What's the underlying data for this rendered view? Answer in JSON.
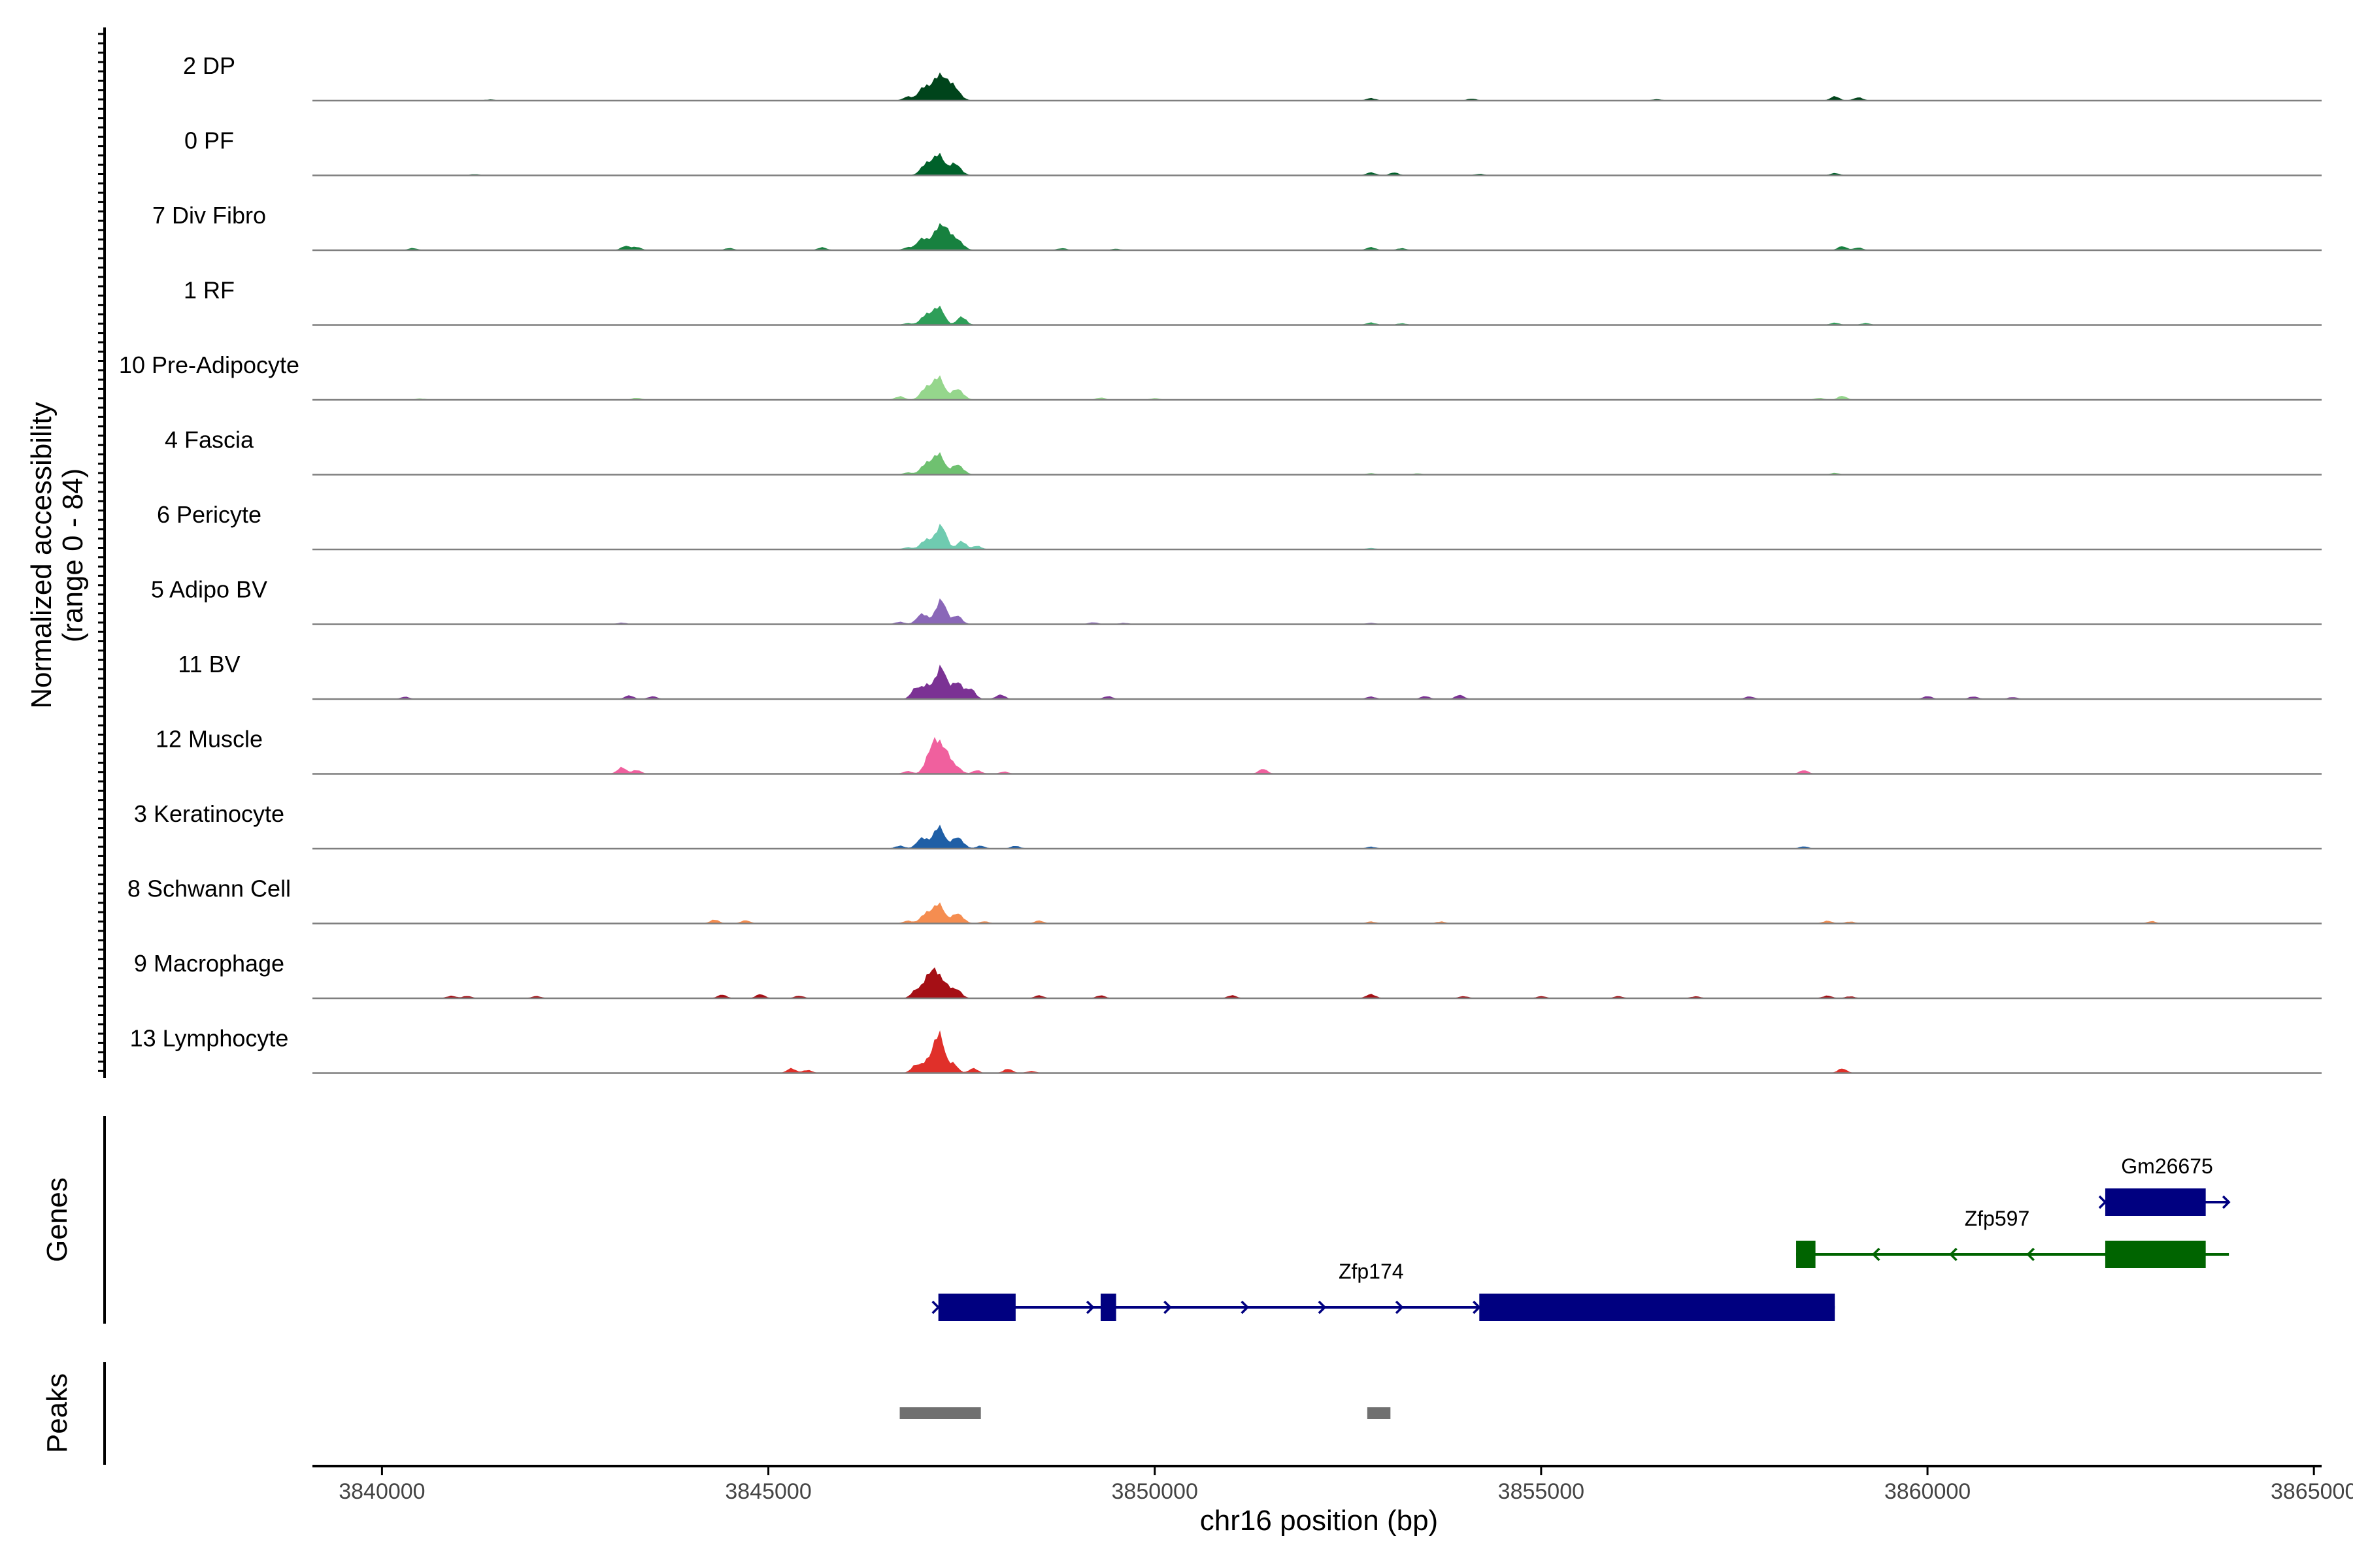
{
  "chart_data": {
    "type": "area",
    "description_type": "genome-coverage-tracks",
    "y_axis_title": [
      "Normalized accessibility",
      "(range 0 - 84)"
    ],
    "y_range": [
      0,
      84
    ],
    "x_axis_title": "chr16 position (bp)",
    "x_range": [
      3839100,
      3865100
    ],
    "x_ticks": [
      3840000,
      3845000,
      3850000,
      3855000,
      3860000,
      3865000
    ],
    "x_tick_labels": [
      "3840000",
      "3845000",
      "3850000",
      "3855000",
      "3860000",
      "3865000"
    ],
    "tracks": [
      {
        "name": "2 DP",
        "color": "#00441b",
        "peaks": [
          [
            3847020,
            45
          ],
          [
            3847180,
            68
          ],
          [
            3847300,
            40
          ],
          [
            3847420,
            38
          ],
          [
            3846800,
            12
          ],
          [
            3852800,
            8
          ],
          [
            3854100,
            6
          ],
          [
            3858800,
            12
          ],
          [
            3859100,
            10
          ],
          [
            3841400,
            3
          ],
          [
            3856500,
            4
          ]
        ]
      },
      {
        "name": "0 PF",
        "color": "#00612a",
        "peaks": [
          [
            3847050,
            40
          ],
          [
            3847200,
            64
          ],
          [
            3847420,
            40
          ],
          [
            3852800,
            10
          ],
          [
            3853100,
            8
          ],
          [
            3858800,
            6
          ],
          [
            3854200,
            4
          ],
          [
            3841200,
            3
          ]
        ]
      },
      {
        "name": "7 Div Fibro",
        "color": "#17813f",
        "peaks": [
          [
            3847000,
            38
          ],
          [
            3847180,
            60
          ],
          [
            3847300,
            50
          ],
          [
            3847450,
            35
          ],
          [
            3843150,
            12
          ],
          [
            3843300,
            10
          ],
          [
            3844500,
            6
          ],
          [
            3845700,
            8
          ],
          [
            3846800,
            8
          ],
          [
            3848800,
            6
          ],
          [
            3849500,
            4
          ],
          [
            3852800,
            10
          ],
          [
            3853200,
            6
          ],
          [
            3858900,
            12
          ],
          [
            3859100,
            8
          ],
          [
            3840400,
            6
          ]
        ]
      },
      {
        "name": "1 RF",
        "color": "#2e9e58",
        "peaks": [
          [
            3847050,
            35
          ],
          [
            3847200,
            55
          ],
          [
            3847500,
            30
          ],
          [
            3852800,
            8
          ],
          [
            3853200,
            5
          ],
          [
            3858800,
            6
          ],
          [
            3859200,
            5
          ],
          [
            3846800,
            5
          ]
        ]
      },
      {
        "name": "10 Pre-Adipocyte",
        "color": "#95d68c",
        "peaks": [
          [
            3847050,
            42
          ],
          [
            3847200,
            70
          ],
          [
            3847450,
            38
          ],
          [
            3846700,
            12
          ],
          [
            3843300,
            6
          ],
          [
            3849300,
            6
          ],
          [
            3850000,
            5
          ],
          [
            3858600,
            6
          ],
          [
            3858900,
            12
          ],
          [
            3840500,
            4
          ]
        ]
      },
      {
        "name": "4 Fascia",
        "color": "#6fc170",
        "peaks": [
          [
            3847050,
            38
          ],
          [
            3847200,
            64
          ],
          [
            3847450,
            35
          ],
          [
            3846800,
            6
          ],
          [
            3852800,
            4
          ],
          [
            3853400,
            3
          ],
          [
            3858800,
            4
          ]
        ]
      },
      {
        "name": "6 Pericyte",
        "color": "#6fcbb0",
        "peaks": [
          [
            3847050,
            34
          ],
          [
            3847230,
            72
          ],
          [
            3847500,
            30
          ],
          [
            3847700,
            10
          ],
          [
            3846800,
            6
          ],
          [
            3852800,
            4
          ]
        ]
      },
      {
        "name": "5 Adipo BV",
        "color": "#8a67b8",
        "peaks": [
          [
            3847000,
            34
          ],
          [
            3847230,
            74
          ],
          [
            3847450,
            30
          ],
          [
            3846700,
            8
          ],
          [
            3849200,
            6
          ],
          [
            3849600,
            4
          ],
          [
            3843100,
            4
          ],
          [
            3852800,
            4
          ]
        ]
      },
      {
        "name": "11 BV",
        "color": "#7b3294",
        "peaks": [
          [
            3846900,
            28
          ],
          [
            3847050,
            48
          ],
          [
            3847230,
            96
          ],
          [
            3847450,
            60
          ],
          [
            3847620,
            30
          ],
          [
            3848000,
            14
          ],
          [
            3843200,
            10
          ],
          [
            3843500,
            8
          ],
          [
            3840300,
            6
          ],
          [
            3849400,
            8
          ],
          [
            3852800,
            8
          ],
          [
            3853500,
            8
          ],
          [
            3853950,
            12
          ],
          [
            3857700,
            8
          ],
          [
            3860000,
            8
          ],
          [
            3860600,
            8
          ],
          [
            3861100,
            6
          ]
        ]
      },
      {
        "name": "12 Muscle",
        "color": "#f0609e",
        "peaks": [
          [
            3847050,
            20
          ],
          [
            3847150,
            110
          ],
          [
            3847300,
            60
          ],
          [
            3847450,
            20
          ],
          [
            3847700,
            10
          ],
          [
            3846800,
            8
          ],
          [
            3843100,
            20
          ],
          [
            3843300,
            12
          ],
          [
            3851400,
            14
          ],
          [
            3858400,
            10
          ],
          [
            3848050,
            6
          ]
        ]
      },
      {
        "name": "3 Keratinocyte",
        "color": "#1f5fa6",
        "peaks": [
          [
            3847000,
            35
          ],
          [
            3847200,
            70
          ],
          [
            3847450,
            40
          ],
          [
            3846700,
            10
          ],
          [
            3847750,
            8
          ],
          [
            3848200,
            8
          ],
          [
            3852800,
            6
          ],
          [
            3858400,
            6
          ]
        ]
      },
      {
        "name": "8 Schwann Cell",
        "color": "#f58d50",
        "peaks": [
          [
            3847050,
            35
          ],
          [
            3847200,
            60
          ],
          [
            3847450,
            35
          ],
          [
            3844300,
            12
          ],
          [
            3844700,
            10
          ],
          [
            3846800,
            8
          ],
          [
            3847800,
            6
          ],
          [
            3848500,
            8
          ],
          [
            3852800,
            6
          ],
          [
            3853700,
            6
          ],
          [
            3858700,
            8
          ],
          [
            3859000,
            6
          ],
          [
            3862900,
            6
          ]
        ]
      },
      {
        "name": "9 Macrophage",
        "color": "#a50f15",
        "peaks": [
          [
            3846900,
            20
          ],
          [
            3847050,
            50
          ],
          [
            3847150,
            80
          ],
          [
            3847300,
            36
          ],
          [
            3847450,
            28
          ],
          [
            3840900,
            8
          ],
          [
            3841100,
            6
          ],
          [
            3842000,
            6
          ],
          [
            3844400,
            10
          ],
          [
            3844900,
            12
          ],
          [
            3845400,
            8
          ],
          [
            3848500,
            8
          ],
          [
            3849300,
            8
          ],
          [
            3851000,
            8
          ],
          [
            3852800,
            14
          ],
          [
            3854000,
            6
          ],
          [
            3856000,
            6
          ],
          [
            3857000,
            6
          ],
          [
            3858700,
            8
          ],
          [
            3859000,
            6
          ],
          [
            3855000,
            6
          ]
        ]
      },
      {
        "name": "13 Lymphocyte",
        "color": "#e0302a",
        "peaks": [
          [
            3846900,
            20
          ],
          [
            3847050,
            36
          ],
          [
            3847200,
            124
          ],
          [
            3847400,
            30
          ],
          [
            3847650,
            14
          ],
          [
            3848100,
            12
          ],
          [
            3845300,
            14
          ],
          [
            3845500,
            10
          ],
          [
            3858900,
            14
          ],
          [
            3848400,
            6
          ]
        ]
      }
    ],
    "genes": [
      {
        "name": "Gm26675",
        "strand": "+",
        "color": "#000080",
        "start": 3862300,
        "end": 3863900,
        "exons": [
          [
            3862300,
            3863600
          ]
        ],
        "arrows": [
          3862300,
          3863900
        ]
      },
      {
        "name": "Zfp597",
        "strand": "-",
        "color": "#006400",
        "start": 3858300,
        "end": 3863900,
        "exons": [
          [
            3858300,
            3858550
          ],
          [
            3862300,
            3863600
          ]
        ],
        "arrows": [
          3859300,
          3860300,
          3861300,
          3862300
        ]
      },
      {
        "name": "Zfp174",
        "strand": "+",
        "color": "#000080",
        "start": 3847200,
        "end": 3858800,
        "exons": [
          [
            3847200,
            3848200
          ],
          [
            3849300,
            3849500
          ],
          [
            3854200,
            3858800
          ]
        ],
        "arrows": [
          3847200,
          3849200,
          3850200,
          3851200,
          3852200,
          3853200,
          3854200
        ]
      }
    ],
    "peaks": [
      [
        3846700,
        3847750
      ],
      [
        3852750,
        3853050
      ]
    ],
    "gene_track_label": "Genes",
    "peak_track_label": "Peaks"
  }
}
